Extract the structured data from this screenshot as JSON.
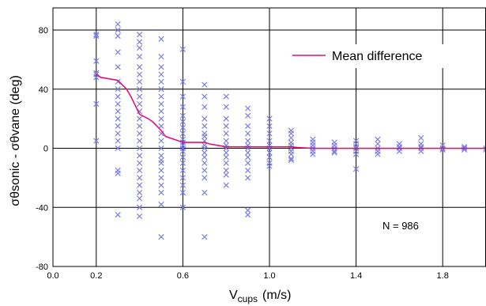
{
  "chart_data": {
    "type": "scatter",
    "xlabel_main": "V",
    "xlabel_sub": "cups",
    "xlabel_unit": "(m/s)",
    "ylabel": "σθsonic - σθvane (deg)",
    "xlim": [
      0.0,
      2.0
    ],
    "ylim": [
      -80,
      95
    ],
    "xticks": [
      0.0,
      0.2,
      0.6,
      1.0,
      1.4,
      1.8
    ],
    "xtick_labels": [
      "0.0",
      "0.2",
      "0.6",
      "1.0",
      "1.4",
      "1.8"
    ],
    "xgrid": [
      0.2,
      0.6,
      1.0,
      1.4,
      1.8
    ],
    "yticks": [
      80,
      40,
      0,
      -40,
      -80
    ],
    "ytick_labels": [
      "80",
      "40",
      "0",
      "-40",
      "-80"
    ],
    "grid": true,
    "legend": {
      "label": "Mean difference",
      "position": "top-right"
    },
    "annotation": "N = 986",
    "colors": {
      "scatter": "#7b7fe0",
      "mean": "#e0127a",
      "grid": "#000000"
    },
    "series": [
      {
        "name": "Mean difference",
        "type": "line",
        "x": [
          0.2,
          0.22,
          0.26,
          0.3,
          0.32,
          0.34,
          0.36,
          0.38,
          0.4,
          0.44,
          0.46,
          0.48,
          0.5,
          0.52,
          0.56,
          0.58,
          0.6,
          0.7,
          0.72,
          0.76,
          0.8,
          1.0,
          1.1,
          1.13,
          1.2,
          1.4,
          1.6,
          1.8,
          2.0
        ],
        "y": [
          50,
          48,
          47,
          46,
          43,
          40,
          35,
          29,
          23,
          20,
          18,
          15,
          12,
          8,
          6,
          5,
          4,
          4,
          3,
          2,
          1,
          1,
          1,
          0.5,
          0,
          0,
          0,
          0,
          0
        ]
      },
      {
        "name": "",
        "type": "scatter",
        "marker": "x",
        "columns": [
          {
            "x": 0.2,
            "y": [
              77,
              76,
              59,
              50,
              30,
              5,
              51,
              48
            ]
          },
          {
            "x": 0.3,
            "y": [
              84,
              80,
              76,
              65,
              55,
              45,
              40,
              30,
              20,
              10,
              0,
              -15,
              -17,
              -45,
              5,
              15,
              25,
              35
            ]
          },
          {
            "x": 0.4,
            "y": [
              77,
              72,
              68,
              62,
              55,
              50,
              45,
              40,
              35,
              30,
              25,
              20,
              15,
              10,
              5,
              0,
              -5,
              -10,
              -15,
              -20,
              -25,
              -30,
              -34,
              -46,
              -40
            ]
          },
          {
            "x": 0.5,
            "y": [
              74,
              62,
              55,
              50,
              45,
              40,
              35,
              30,
              25,
              20,
              15,
              10,
              5,
              0,
              -5,
              -10,
              -15,
              -20,
              -25,
              -30,
              -38,
              -60,
              -8
            ]
          },
          {
            "x": 0.6,
            "y": [
              67,
              45,
              35,
              28,
              22,
              18,
              14,
              10,
              6,
              2,
              -2,
              -6,
              -10,
              -15,
              -20,
              -25,
              -30,
              -40,
              0,
              4
            ]
          },
          {
            "x": 0.7,
            "y": [
              43,
              35,
              28,
              20,
              15,
              10,
              5,
              2,
              0,
              -3,
              -6,
              -10,
              -15,
              -20,
              -30,
              -60,
              8
            ]
          },
          {
            "x": 0.8,
            "y": [
              35,
              28,
              20,
              15,
              10,
              5,
              2,
              0,
              -3,
              -6,
              -10,
              -15,
              -18,
              -25
            ]
          },
          {
            "x": 0.9,
            "y": [
              27,
              22,
              15,
              10,
              5,
              2,
              0,
              -3,
              -6,
              -10,
              -15,
              -20,
              -42,
              -45
            ]
          },
          {
            "x": 1.0,
            "y": [
              20,
              15,
              10,
              5,
              2,
              0,
              -3,
              -6,
              -10,
              -12
            ]
          },
          {
            "x": 1.1,
            "y": [
              12,
              10,
              7,
              4,
              2,
              0,
              -2,
              -4,
              -7,
              -8
            ]
          },
          {
            "x": 1.2,
            "y": [
              6,
              4,
              2,
              0,
              -2,
              -4
            ]
          },
          {
            "x": 1.3,
            "y": [
              4,
              2,
              0,
              -2,
              -3
            ]
          },
          {
            "x": 1.4,
            "y": [
              5,
              3,
              1,
              0,
              -2,
              -4,
              -14
            ]
          },
          {
            "x": 1.5,
            "y": [
              6,
              3,
              0,
              -2,
              -4
            ]
          },
          {
            "x": 1.6,
            "y": [
              3,
              1,
              0,
              -2
            ]
          },
          {
            "x": 1.7,
            "y": [
              7,
              3,
              1,
              0,
              -2
            ]
          },
          {
            "x": 1.8,
            "y": [
              2,
              0,
              -1
            ]
          },
          {
            "x": 1.9,
            "y": [
              1,
              0,
              -1
            ]
          },
          {
            "x": 2.0,
            "y": [
              0,
              -1
            ]
          }
        ]
      }
    ]
  }
}
